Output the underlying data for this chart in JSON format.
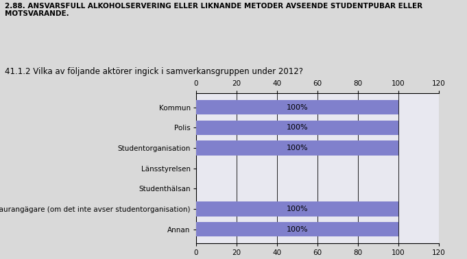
{
  "title1": "2.88. ANSVARSFULL ALKOHOLSERVERING ELLER LIKNANDE METODER AVSEENDE STUDENTPUBAR ELLER\nMOTSVARANDE.",
  "title2": "41.1.2 Vilka av följande aktörer ingick i samverkansgruppen under 2012?",
  "categories": [
    "Kommun",
    "Polis",
    "Studentorganisation",
    "Länsstyrelsen",
    "Studenthälsan",
    "Restaurangägare (om det inte avser studentorganisation)",
    "Annan"
  ],
  "values": [
    100,
    100,
    100,
    0,
    0,
    100,
    100
  ],
  "bar_color": "#8080cc",
  "bar_bg_color": "#c8c8e8",
  "background_color": "#d9d9d9",
  "plot_bg_color": "#e8e8f0",
  "xlim": [
    0,
    120
  ],
  "xticks": [
    0,
    20,
    40,
    60,
    80,
    100,
    120
  ],
  "text_color": "#000000",
  "title1_fontsize": 7.5,
  "title2_fontsize": 8.5,
  "tick_fontsize": 7.5,
  "bar_label_fontsize": 8,
  "category_fontsize": 7.5
}
